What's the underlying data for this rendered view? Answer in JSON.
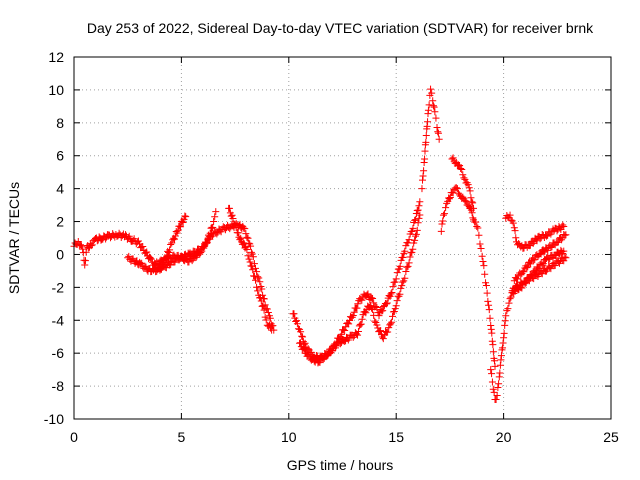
{
  "chart_data": {
    "type": "scatter",
    "title": "Day 253 of 2022, Sidereal Day-to-day VTEC variation (SDTVAR) for receiver brnk",
    "xlabel": "GPS time / hours",
    "ylabel": "SDTVAR / TECUs",
    "xlim": [
      0,
      25
    ],
    "ylim": [
      -10,
      12
    ],
    "xticks": [
      0,
      5,
      10,
      15,
      20,
      25
    ],
    "yticks": [
      -10,
      -8,
      -6,
      -4,
      -2,
      0,
      2,
      4,
      6,
      8,
      10,
      12
    ],
    "grid": true,
    "marker": "plus",
    "color": "#ff0000",
    "series": [
      {
        "values": [
          [
            0.0,
            0.5
          ],
          [
            0.2,
            0.8
          ],
          [
            0.4,
            0.3
          ],
          [
            0.5,
            -0.6
          ],
          [
            0.6,
            0.4
          ],
          [
            0.8,
            0.6
          ],
          [
            1.0,
            0.9
          ],
          [
            1.3,
            1.0
          ],
          [
            1.6,
            1.1
          ],
          [
            2.0,
            1.2
          ],
          [
            2.4,
            1.1
          ],
          [
            2.7,
            0.9
          ],
          [
            3.0,
            0.7
          ],
          [
            3.3,
            0.2
          ],
          [
            3.6,
            -0.4
          ],
          [
            3.9,
            -0.8
          ],
          [
            4.2,
            -0.8
          ],
          [
            4.5,
            -0.5
          ],
          [
            4.8,
            -0.3
          ],
          [
            5.1,
            -0.1
          ],
          [
            5.4,
            0.0
          ],
          [
            5.7,
            0.2
          ],
          [
            6.0,
            0.4
          ],
          [
            6.2,
            0.8
          ],
          [
            6.4,
            1.2
          ],
          [
            6.7,
            1.4
          ],
          [
            7.0,
            1.6
          ],
          [
            7.3,
            1.7
          ],
          [
            7.6,
            1.8
          ],
          [
            7.9,
            1.6
          ],
          [
            8.1,
            1.0
          ],
          [
            8.3,
            0.0
          ],
          [
            8.5,
            -1.0
          ],
          [
            8.7,
            -2.0
          ],
          [
            8.9,
            -3.0
          ],
          [
            9.1,
            -3.8
          ],
          [
            9.3,
            -4.6
          ]
        ]
      },
      {
        "values": [
          [
            2.5,
            -0.2
          ],
          [
            2.8,
            -0.4
          ],
          [
            3.1,
            -0.6
          ],
          [
            3.4,
            -0.9
          ],
          [
            3.7,
            -1.0
          ],
          [
            4.0,
            -0.9
          ],
          [
            4.2,
            -0.4
          ],
          [
            4.4,
            0.2
          ],
          [
            4.6,
            0.8
          ],
          [
            4.8,
            1.4
          ],
          [
            5.0,
            1.9
          ],
          [
            5.2,
            2.3
          ]
        ]
      },
      {
        "values": [
          [
            3.8,
            -0.6
          ],
          [
            4.1,
            -0.4
          ],
          [
            4.4,
            -0.2
          ],
          [
            4.7,
            -0.1
          ],
          [
            5.0,
            -0.2
          ],
          [
            5.3,
            -0.4
          ],
          [
            5.6,
            -0.2
          ],
          [
            5.9,
            0.2
          ],
          [
            6.1,
            0.5
          ],
          [
            6.3,
            1.2
          ],
          [
            6.5,
            1.9
          ],
          [
            6.6,
            2.6
          ]
        ]
      },
      {
        "values": [
          [
            7.2,
            2.8
          ],
          [
            7.4,
            2.2
          ],
          [
            7.6,
            1.3
          ],
          [
            7.8,
            0.8
          ],
          [
            8.0,
            0.4
          ],
          [
            8.2,
            -0.4
          ],
          [
            8.4,
            -1.4
          ],
          [
            8.6,
            -2.4
          ],
          [
            8.8,
            -3.2
          ],
          [
            9.0,
            -4.2
          ],
          [
            9.2,
            -4.6
          ]
        ]
      },
      {
        "values": [
          [
            10.2,
            -3.6
          ],
          [
            10.4,
            -4.2
          ],
          [
            10.6,
            -5.0
          ],
          [
            10.8,
            -5.6
          ],
          [
            11.0,
            -6.0
          ],
          [
            11.2,
            -6.2
          ],
          [
            11.5,
            -6.3
          ],
          [
            11.8,
            -6.0
          ],
          [
            12.1,
            -5.6
          ],
          [
            12.4,
            -4.9
          ],
          [
            12.7,
            -4.3
          ],
          [
            13.0,
            -3.6
          ],
          [
            13.3,
            -2.8
          ],
          [
            13.6,
            -2.4
          ],
          [
            13.9,
            -2.8
          ],
          [
            14.2,
            -3.6
          ],
          [
            14.5,
            -3.1
          ],
          [
            14.8,
            -2.2
          ],
          [
            15.1,
            -1.0
          ],
          [
            15.4,
            0.3
          ],
          [
            15.7,
            1.3
          ],
          [
            15.9,
            2.2
          ],
          [
            16.1,
            3.2
          ]
        ]
      },
      {
        "values": [
          [
            10.5,
            -5.4
          ],
          [
            10.8,
            -6.0
          ],
          [
            11.1,
            -6.4
          ],
          [
            11.4,
            -6.5
          ],
          [
            11.7,
            -6.2
          ],
          [
            12.0,
            -5.8
          ],
          [
            12.3,
            -5.4
          ],
          [
            12.6,
            -5.2
          ],
          [
            12.9,
            -5.0
          ],
          [
            13.2,
            -4.8
          ],
          [
            13.5,
            -3.6
          ],
          [
            13.8,
            -3.0
          ],
          [
            14.1,
            -4.4
          ],
          [
            14.4,
            -5.0
          ],
          [
            14.7,
            -4.4
          ],
          [
            15.0,
            -3.0
          ],
          [
            15.3,
            -1.8
          ],
          [
            15.6,
            -0.4
          ],
          [
            15.9,
            1.0
          ],
          [
            16.1,
            2.4
          ]
        ]
      },
      {
        "values": [
          [
            16.2,
            4.0
          ],
          [
            16.3,
            5.6
          ],
          [
            16.4,
            7.2
          ],
          [
            16.5,
            8.8
          ],
          [
            16.6,
            10.0
          ],
          [
            16.7,
            9.4
          ],
          [
            16.8,
            8.6
          ],
          [
            16.9,
            7.8
          ],
          [
            17.0,
            7.0
          ]
        ]
      },
      {
        "values": [
          [
            17.1,
            1.4
          ],
          [
            17.2,
            2.4
          ],
          [
            17.4,
            3.2
          ],
          [
            17.6,
            3.8
          ],
          [
            17.8,
            4.0
          ],
          [
            18.0,
            3.6
          ],
          [
            18.2,
            3.2
          ],
          [
            18.4,
            3.0
          ],
          [
            18.5,
            2.6
          ],
          [
            18.6,
            2.2
          ],
          [
            18.8,
            1.5
          ],
          [
            19.0,
            0.0
          ],
          [
            19.2,
            -2.0
          ],
          [
            19.4,
            -4.2
          ],
          [
            19.5,
            -5.6
          ],
          [
            19.6,
            -6.8
          ]
        ]
      },
      {
        "values": [
          [
            17.6,
            5.8
          ],
          [
            17.8,
            5.6
          ],
          [
            18.0,
            5.2
          ],
          [
            18.2,
            4.6
          ],
          [
            18.4,
            4.0
          ],
          [
            18.6,
            2.8
          ]
        ]
      },
      {
        "values": [
          [
            19.4,
            -7.0
          ],
          [
            19.6,
            -8.8
          ],
          [
            19.7,
            -8.6
          ],
          [
            19.8,
            -7.4
          ],
          [
            19.9,
            -6.2
          ],
          [
            20.0,
            -5.0
          ],
          [
            20.1,
            -3.8
          ],
          [
            20.3,
            -2.6
          ],
          [
            20.6,
            -2.0
          ],
          [
            21.0,
            -1.6
          ],
          [
            21.5,
            -1.3
          ],
          [
            22.0,
            -0.9
          ],
          [
            22.5,
            -0.5
          ],
          [
            22.9,
            -0.2
          ]
        ]
      },
      {
        "values": [
          [
            20.1,
            2.2
          ],
          [
            20.3,
            2.4
          ],
          [
            20.5,
            1.6
          ],
          [
            20.6,
            0.8
          ],
          [
            20.8,
            0.4
          ],
          [
            21.2,
            0.6
          ],
          [
            21.6,
            1.0
          ],
          [
            22.0,
            1.2
          ],
          [
            22.4,
            1.5
          ],
          [
            22.8,
            1.7
          ]
        ]
      },
      {
        "values": [
          [
            20.5,
            -1.6
          ],
          [
            20.9,
            -1.0
          ],
          [
            21.3,
            -0.4
          ],
          [
            21.7,
            0.1
          ],
          [
            22.1,
            0.4
          ],
          [
            22.5,
            0.8
          ],
          [
            22.9,
            1.2
          ]
        ]
      },
      {
        "values": [
          [
            20.4,
            -2.2
          ],
          [
            20.8,
            -2.0
          ],
          [
            21.2,
            -1.4
          ],
          [
            21.6,
            -0.8
          ],
          [
            22.0,
            -0.3
          ],
          [
            22.4,
            0.0
          ],
          [
            22.8,
            0.2
          ]
        ]
      }
    ]
  }
}
